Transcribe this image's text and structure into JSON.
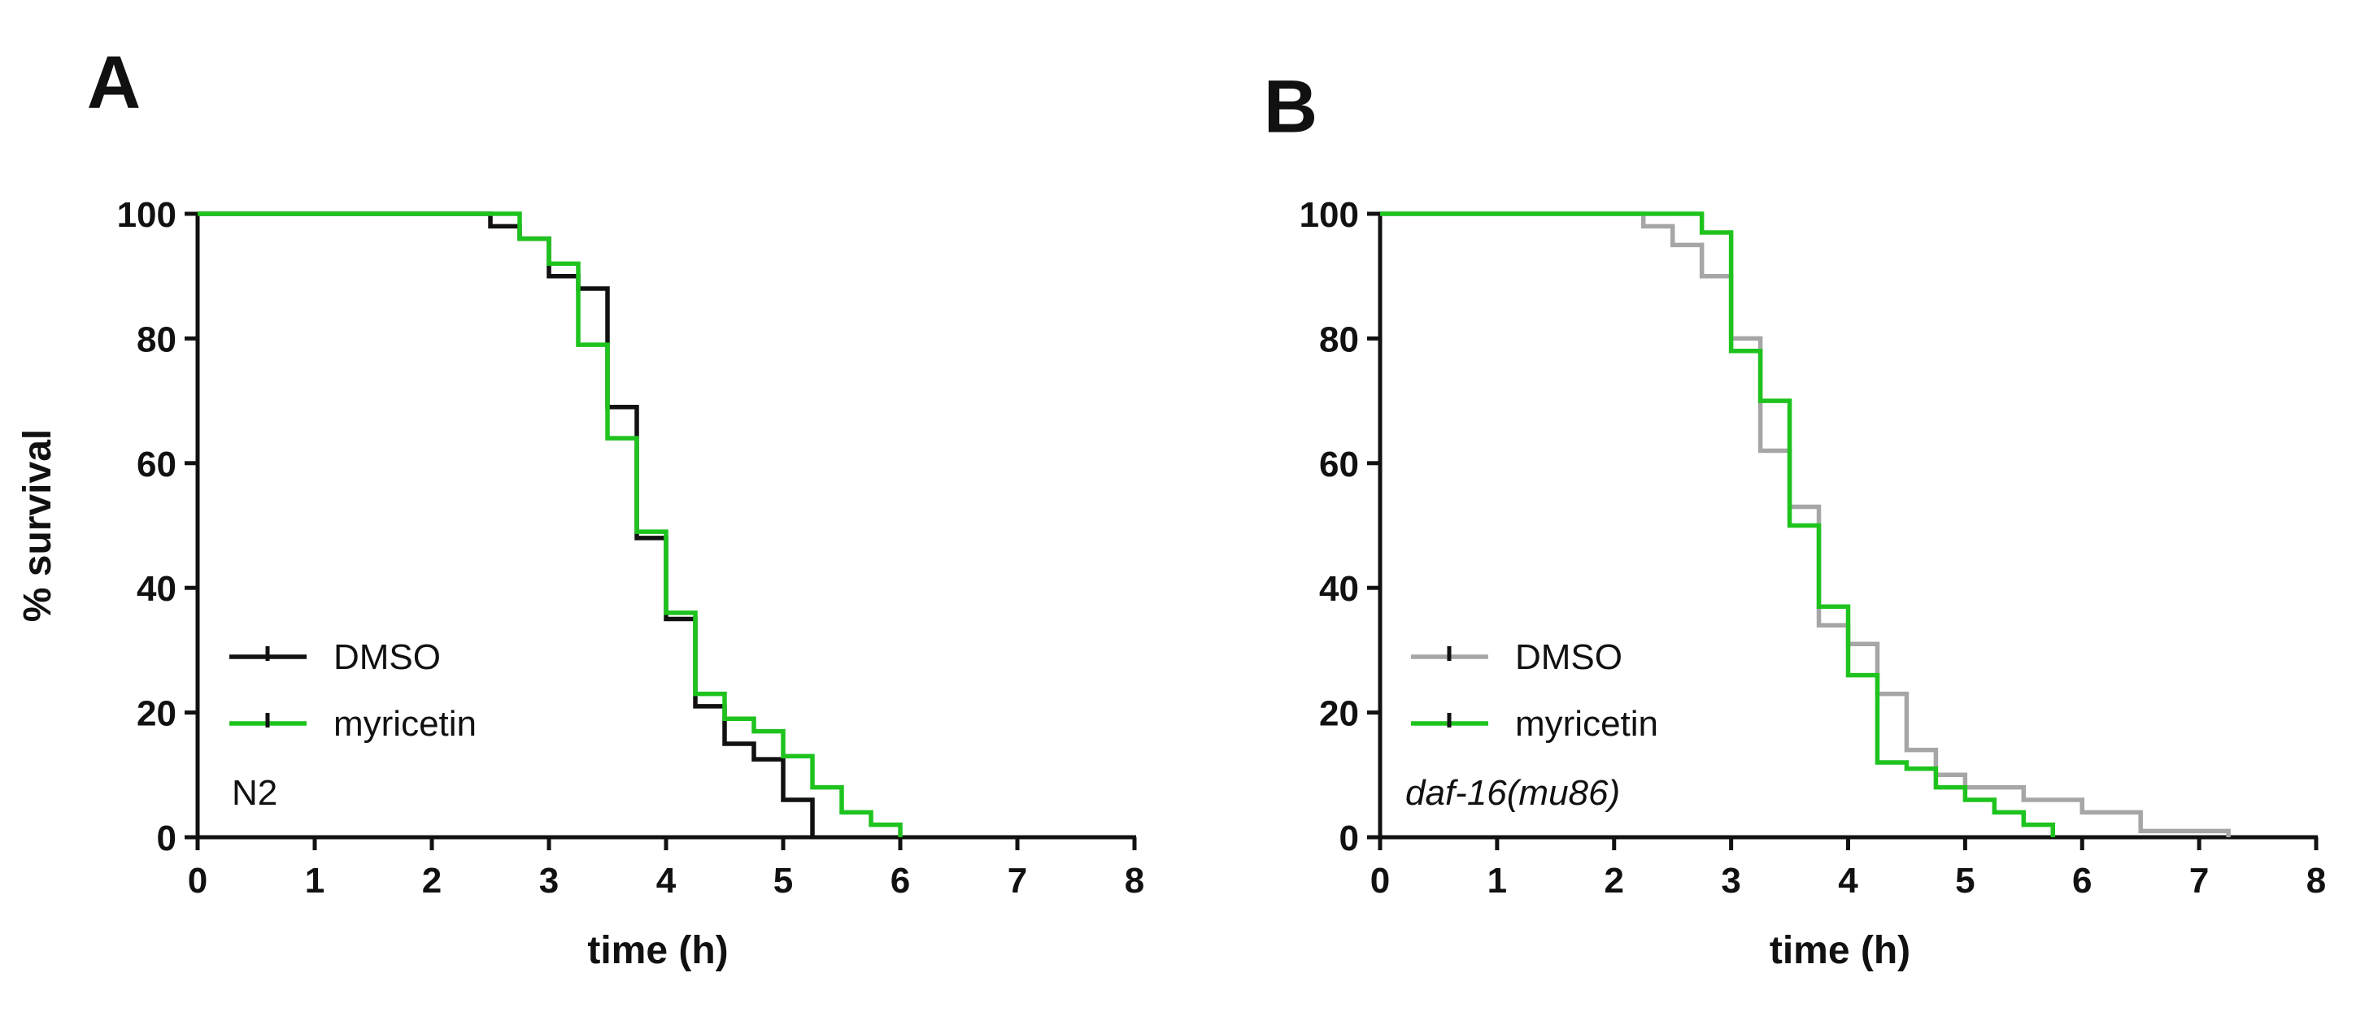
{
  "chart_data": [
    {
      "type": "line",
      "subtype": "step",
      "panel": "A",
      "strain": "N2",
      "strain_italic": false,
      "xlabel": "time (h)",
      "ylabel": "% survival",
      "xlim": [
        0,
        8
      ],
      "ylim": [
        0,
        100
      ],
      "xticks": [
        "0",
        "1",
        "2",
        "3",
        "4",
        "5",
        "6",
        "7",
        "8"
      ],
      "yticks": [
        "0",
        "20",
        "40",
        "60",
        "80",
        "100"
      ],
      "legend_position": "bottom-left",
      "series": [
        {
          "name": "DMSO",
          "color": "#111111",
          "x": [
            0,
            2.5,
            2.75,
            3.0,
            3.25,
            3.5,
            3.75,
            4.0,
            4.25,
            4.5,
            4.75,
            5.0,
            5.25
          ],
          "y": [
            100,
            98,
            96,
            90,
            88,
            69,
            48,
            35,
            21,
            15,
            12.5,
            6,
            0
          ]
        },
        {
          "name": "myricetin",
          "color": "#1ec31e",
          "x": [
            0,
            2.75,
            3.0,
            3.25,
            3.5,
            3.75,
            4.0,
            4.25,
            4.5,
            4.75,
            5.0,
            5.25,
            5.5,
            5.75,
            6.0
          ],
          "y": [
            100,
            96,
            92,
            79,
            64,
            49,
            36,
            23,
            19,
            17,
            13,
            8,
            4,
            2,
            0
          ]
        }
      ]
    },
    {
      "type": "line",
      "subtype": "step",
      "panel": "B",
      "strain": "daf-16(mu86)",
      "strain_italic": true,
      "xlabel": "time (h)",
      "ylabel": "",
      "xlim": [
        0,
        8
      ],
      "ylim": [
        0,
        100
      ],
      "xticks": [
        "0",
        "1",
        "2",
        "3",
        "4",
        "5",
        "6",
        "7",
        "8"
      ],
      "yticks": [
        "0",
        "20",
        "40",
        "60",
        "80",
        "100"
      ],
      "legend_position": "bottom-left",
      "series": [
        {
          "name": "DMSO",
          "color": "#a6a6a6",
          "x": [
            0,
            2.25,
            2.5,
            2.75,
            3.0,
            3.25,
            3.5,
            3.75,
            4.0,
            4.25,
            4.5,
            4.75,
            5.0,
            5.5,
            6.0,
            6.5,
            7.25
          ],
          "y": [
            100,
            98,
            95,
            90,
            80,
            62,
            53,
            34,
            31,
            23,
            14,
            10,
            8,
            6,
            4,
            1,
            0
          ]
        },
        {
          "name": "myricetin",
          "color": "#1ec31e",
          "x": [
            0,
            2.75,
            3.0,
            3.25,
            3.5,
            3.75,
            4.0,
            4.25,
            4.5,
            4.75,
            5.0,
            5.25,
            5.5,
            5.75
          ],
          "y": [
            100,
            97,
            78,
            70,
            50,
            37,
            26,
            12,
            11,
            8,
            6,
            4,
            2,
            0
          ]
        }
      ]
    }
  ]
}
